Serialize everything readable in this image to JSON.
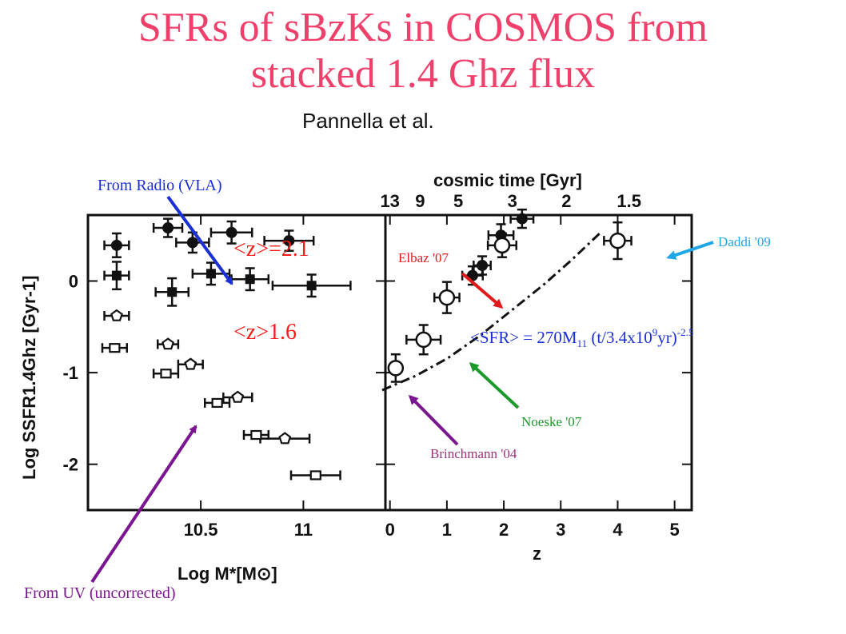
{
  "title_line1": "SFRs of sBzKs in COSMOS from",
  "title_line2": "stacked 1.4 Ghz flux",
  "credit": "Pannella et al.",
  "annotations": {
    "radio": "From Radio (VLA)",
    "uv": "From UV (uncorrected)",
    "z21": "<z>=2.1",
    "z16": "<z>1.6",
    "daddi": "Daddi '09",
    "elbaz": "Elbaz '07",
    "noeske": "Noeske '07",
    "brinchmann": "Brinchmann '04",
    "sfr_formula_a": "<SFR> = 270M",
    "sfr_formula_sub": "11",
    "sfr_formula_b": " (t/3.4x10",
    "sfr_formula_sup1": "9",
    "sfr_formula_c": "yr)",
    "sfr_formula_sup2": "-2.5"
  },
  "colors": {
    "title": "#ef3f6b",
    "radio_arrow": "#1a2fd6",
    "uv_arrow": "#7a168f",
    "daddi": "#1fa6e6",
    "elbaz": "#e01a1a",
    "noeske": "#1a9a2a",
    "brinchmann": "#a0307a"
  },
  "chart_data": [
    {
      "type": "scatter",
      "xlabel": "Log M*[M⊙]",
      "ylabel": "Log SSFR1.4Ghz [Gyr-1]",
      "xticks": [
        "10.5",
        "11"
      ],
      "yticks": [
        "0",
        "-1",
        "-2"
      ],
      "xlim": [
        9.95,
        11.4
      ],
      "ylim": [
        -2.5,
        0.72
      ],
      "series": [
        {
          "name": "<z>=2.1",
          "marker": "filled-circle",
          "points": [
            {
              "x": 10.09,
              "y": 0.39,
              "xerr": 0.06,
              "yerr": 0.13
            },
            {
              "x": 10.34,
              "y": 0.58,
              "xerr": 0.07,
              "yerr": 0.1
            },
            {
              "x": 10.46,
              "y": 0.42,
              "xerr": 0.08,
              "yerr": 0.11
            },
            {
              "x": 10.65,
              "y": 0.53,
              "xerr": 0.1,
              "yerr": 0.12
            },
            {
              "x": 10.93,
              "y": 0.44,
              "xerr": 0.12,
              "yerr": 0.11
            }
          ]
        },
        {
          "name": "<z>1.6",
          "marker": "filled-square",
          "points": [
            {
              "x": 10.09,
              "y": 0.06,
              "xerr": 0.06,
              "yerr": 0.15
            },
            {
              "x": 10.36,
              "y": -0.12,
              "xerr": 0.08,
              "yerr": 0.15
            },
            {
              "x": 10.55,
              "y": 0.08,
              "xerr": 0.09,
              "yerr": 0.12
            },
            {
              "x": 10.74,
              "y": 0.02,
              "xerr": 0.09,
              "yerr": 0.12
            },
            {
              "x": 11.04,
              "y": -0.05,
              "xerr": 0.19,
              "yerr": 0.12
            }
          ]
        },
        {
          "name": "",
          "marker": "open-pentagon",
          "points": [
            {
              "x": 10.09,
              "y": -0.38,
              "xerr": 0.06,
              "yerr": 0.0
            },
            {
              "x": 10.34,
              "y": -0.69,
              "xerr": 0.05,
              "yerr": 0.0
            },
            {
              "x": 10.45,
              "y": -0.91,
              "xerr": 0.06,
              "yerr": 0.0
            },
            {
              "x": 10.68,
              "y": -1.27,
              "xerr": 0.07,
              "yerr": 0.0
            },
            {
              "x": 10.91,
              "y": -1.72,
              "xerr": 0.12,
              "yerr": 0.0
            }
          ]
        },
        {
          "name": "",
          "marker": "open-square",
          "points": [
            {
              "x": 10.08,
              "y": -0.73,
              "xerr": 0.06,
              "yerr": 0.0
            },
            {
              "x": 10.33,
              "y": -1.01,
              "xerr": 0.06,
              "yerr": 0.0
            },
            {
              "x": 10.58,
              "y": -1.33,
              "xerr": 0.06,
              "yerr": 0.0
            },
            {
              "x": 10.77,
              "y": -1.68,
              "xerr": 0.06,
              "yerr": 0.0
            },
            {
              "x": 11.06,
              "y": -2.12,
              "xerr": 0.12,
              "yerr": 0.0
            }
          ]
        }
      ]
    },
    {
      "type": "scatter",
      "xlabel": "z",
      "top_xlabel": "cosmic time [Gyr]",
      "xticks": [
        "0",
        "1",
        "2",
        "3",
        "4",
        "5"
      ],
      "top_xticks": [
        "13",
        "9",
        "5",
        "3",
        "2",
        "1.5"
      ],
      "xlim": [
        -0.08,
        5.3
      ],
      "ylim": [
        -2.5,
        0.72
      ],
      "series": [
        {
          "name": "",
          "marker": "filled-circle",
          "points": [
            {
              "x": 1.45,
              "y": 0.06,
              "xerr": 0.18,
              "yerr": 0.1
            },
            {
              "x": 1.62,
              "y": 0.17,
              "xerr": 0.15,
              "yerr": 0.1
            },
            {
              "x": 1.95,
              "y": 0.5,
              "xerr": 0.22,
              "yerr": 0.12
            },
            {
              "x": 2.32,
              "y": 0.68,
              "xerr": 0.2,
              "yerr": 0.1
            }
          ]
        },
        {
          "name": "",
          "marker": "open-circle",
          "points": [
            {
              "x": 0.1,
              "y": -0.95,
              "xerr": 0.1,
              "yerr": 0.15
            },
            {
              "x": 0.59,
              "y": -0.64,
              "xerr": 0.3,
              "yerr": 0.16
            },
            {
              "x": 1.0,
              "y": -0.18,
              "xerr": 0.22,
              "yerr": 0.17
            },
            {
              "x": 1.97,
              "y": 0.39,
              "xerr": 0.25,
              "yerr": 0.13
            },
            {
              "x": 4.0,
              "y": 0.44,
              "xerr": 0.24,
              "yerr": 0.2
            }
          ]
        }
      ]
    }
  ]
}
